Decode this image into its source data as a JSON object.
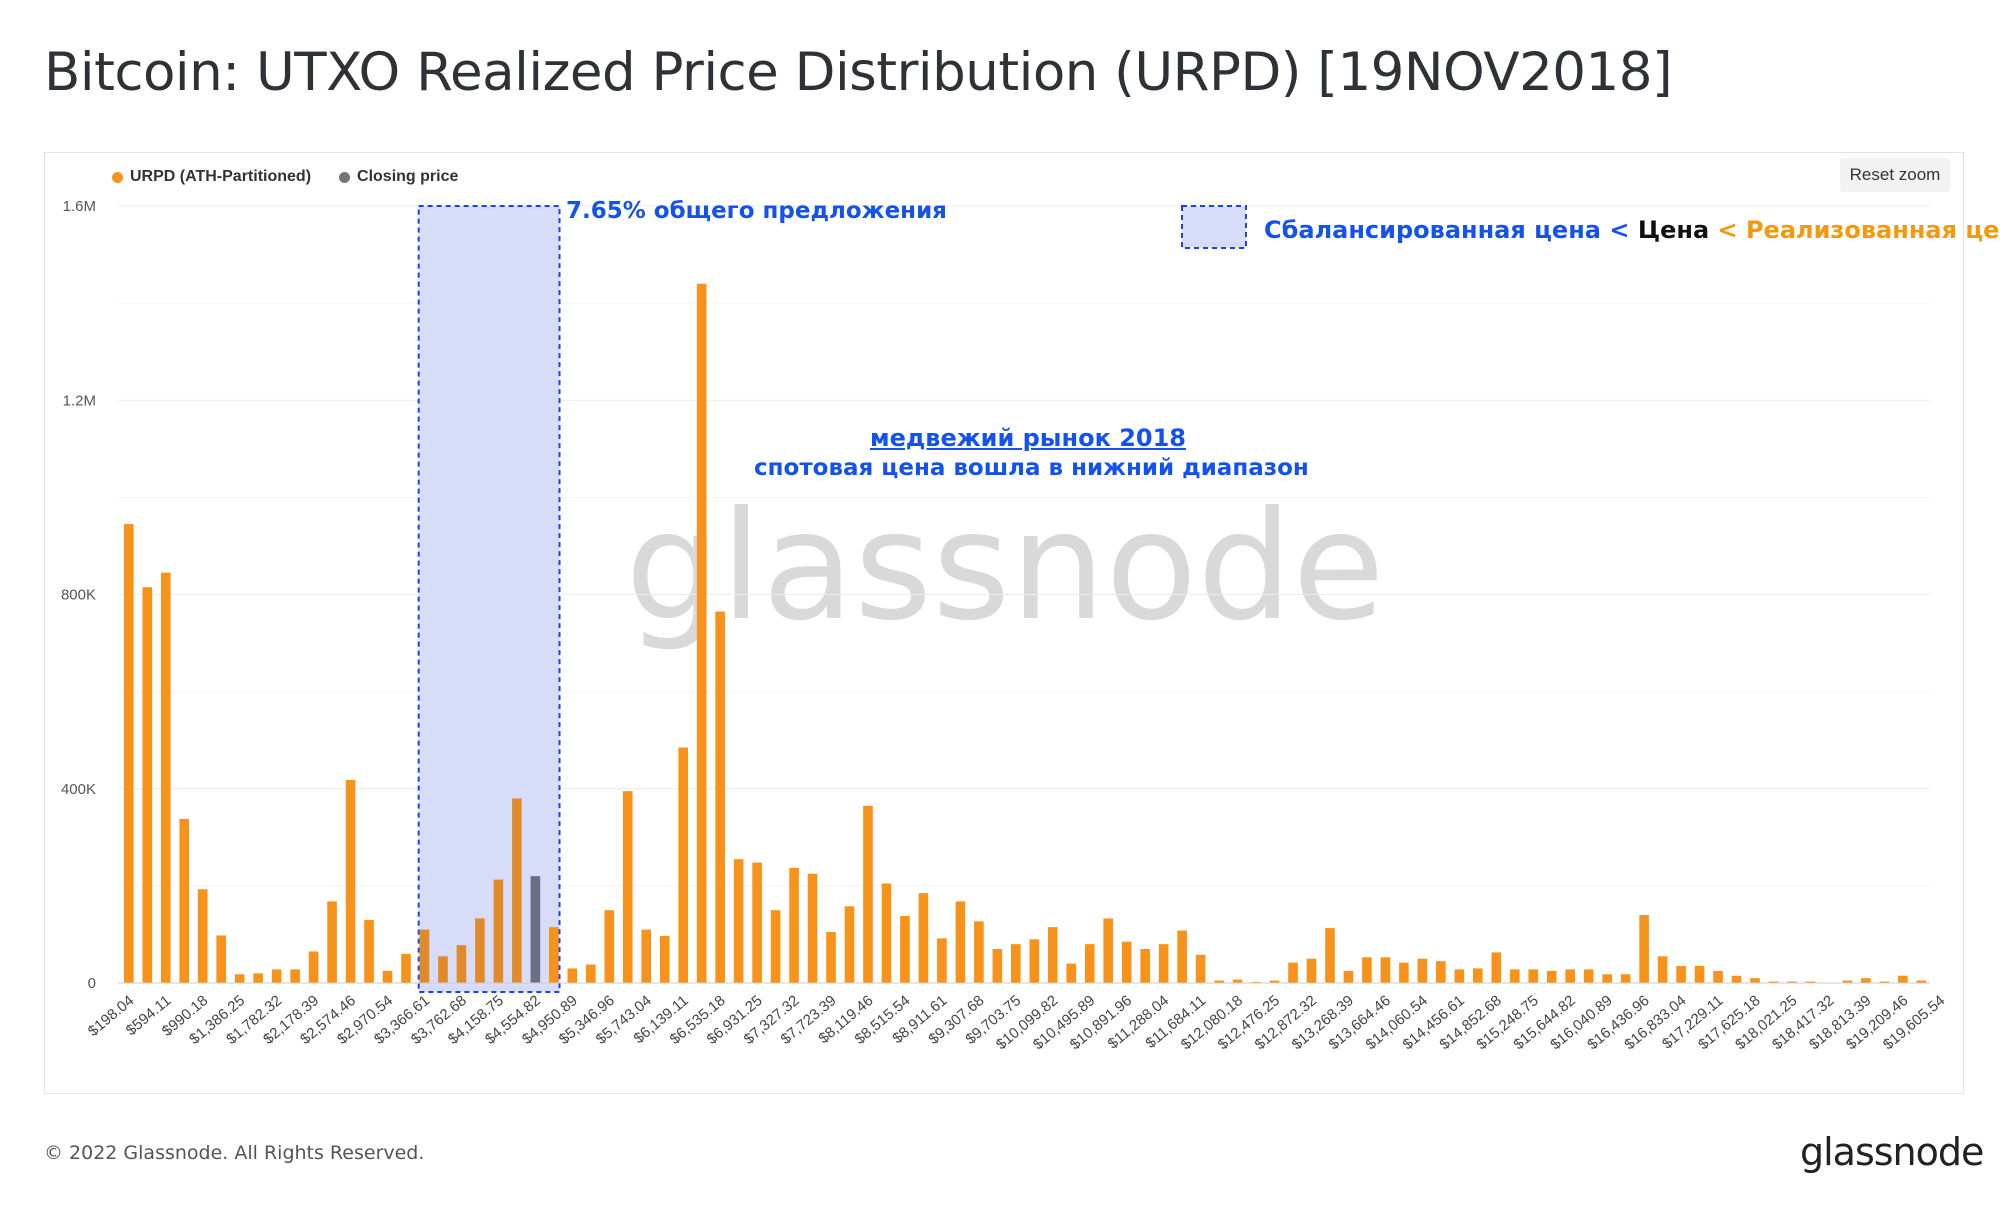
{
  "title": "Bitcoin: UTXO Realized Price Distribution (URPD) [19NOV2018]",
  "reset_zoom": "Reset zoom",
  "legend": [
    {
      "name": "URPD (ATH-Partitioned)",
      "color": "#f7931a"
    },
    {
      "name": "Closing price",
      "color": "#757575"
    }
  ],
  "annotations": {
    "supply_pct": "7.65% общего предложения",
    "key_part1": "Сбалансированная цена <",
    "key_part2": "Цена",
    "key_part3": "< Реализованная цена",
    "bear_title": "медвежий рынок 2018",
    "bear_sub": "спотовая цена вошла в нижний диапазон"
  },
  "colors": {
    "bar": "#f7931a",
    "closing": "#6b6f82",
    "highlight": "#d7ddf9",
    "highlight_border": "#1d3fe8",
    "annotation_blue": "#1452ee",
    "annotation_orange": "#f29a0e"
  },
  "watermark": "glassnode",
  "copyright": "© 2022 Glassnode. All Rights Reserved.",
  "logo": "glassnode",
  "chart_data": {
    "type": "bar",
    "x_tick_labels": [
      "$198.04",
      "$594.11",
      "$990.18",
      "$1,386.25",
      "$1,782.32",
      "$2,178.39",
      "$2,574.46",
      "$2,970.54",
      "$3,366.61",
      "$3,762.68",
      "$4,158.75",
      "$4,554.82",
      "$4,950.89",
      "$5,346.96",
      "$5,743.04",
      "$6,139.11",
      "$6,535.18",
      "$6,931.25",
      "$7,327.32",
      "$7,723.39",
      "$8,119.46",
      "$8,515.54",
      "$8,911.61",
      "$9,307.68",
      "$9,703.75",
      "$10,099.82",
      "$10,495.89",
      "$10,891.96",
      "$11,288.04",
      "$11,684.11",
      "$12,080.18",
      "$12,476.25",
      "$12,872.32",
      "$13,268.39",
      "$13,664.46",
      "$14,060.54",
      "$14,456.61",
      "$14,852.68",
      "$15,248.75",
      "$15,644.82",
      "$16,040.89",
      "$16,436.96",
      "$16,833.04",
      "$17,229.11",
      "$17,625.18",
      "$18,021.25",
      "$18,417.32",
      "$18,813.39",
      "$19,209.46",
      "$19,605.54"
    ],
    "y_tick_labels": [
      "0",
      "400K",
      "800K",
      "1.2M",
      "1.6M"
    ],
    "ylim": [
      0,
      1600000
    ],
    "values": [
      945000,
      815000,
      845000,
      338000,
      193000,
      98000,
      18000,
      20000,
      28000,
      28000,
      65000,
      168000,
      418000,
      130000,
      25000,
      60000,
      110000,
      55000,
      78000,
      133000,
      213000,
      380000,
      220000,
      115000,
      30000,
      38000,
      150000,
      395000,
      110000,
      97000,
      485000,
      1440000,
      765000,
      255000,
      248000,
      150000,
      237000,
      225000,
      105000,
      158000,
      365000,
      205000,
      138000,
      185000,
      92000,
      168000,
      127000,
      70000,
      80000,
      90000,
      115000,
      40000,
      80000,
      133000,
      85000,
      70000,
      80000,
      108000,
      58000,
      5000,
      7000,
      2000,
      5000,
      42000,
      50000,
      113000,
      25000,
      53000,
      53000,
      42000,
      50000,
      45000,
      28000,
      30000,
      63000,
      28000,
      28000,
      25000,
      28000,
      28000,
      18000,
      18000,
      140000,
      55000,
      35000,
      35000,
      25000,
      15000,
      10000,
      3000,
      3000,
      3000,
      1000,
      5000,
      10000,
      3000,
      15000,
      5000
    ],
    "closing_price_index": 22,
    "highlight_range_index": [
      16,
      23
    ],
    "legend_position": "top-left",
    "grid": true
  }
}
